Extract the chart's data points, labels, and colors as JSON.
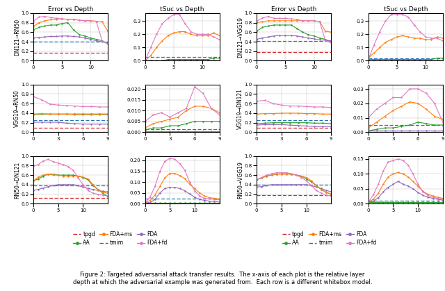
{
  "colors": {
    "tpgd": "#d62728",
    "tmim": "#1f77b4",
    "AA": "#2ca02c",
    "FDA": "#9467bd",
    "FDA+ms": "#ff7f0e",
    "FDA+fd": "#e377c2"
  },
  "plots": {
    "r0c0": {
      "ylim": [
        0.0,
        1.0
      ],
      "yticks": [
        0.0,
        0.2,
        0.4,
        0.6,
        0.8,
        1.0
      ],
      "xticks": [
        0,
        5,
        10
      ],
      "xlim": [
        0,
        13
      ],
      "ylabel": "DN121→RN50",
      "tpgd": [
        0.17,
        0.17,
        0.17,
        0.17,
        0.17,
        0.17,
        0.17,
        0.17,
        0.17,
        0.17,
        0.17,
        0.17,
        0.17,
        0.17
      ],
      "tmim": [
        0.4,
        0.4,
        0.4,
        0.4,
        0.4,
        0.4,
        0.4,
        0.4,
        0.4,
        0.4,
        0.4,
        0.4,
        0.4,
        0.4
      ],
      "AA": [
        0.65,
        0.7,
        0.73,
        0.75,
        0.75,
        0.78,
        0.8,
        0.65,
        0.55,
        0.52,
        0.48,
        0.45,
        0.42,
        0.35
      ],
      "FDA": [
        0.48,
        0.49,
        0.5,
        0.51,
        0.51,
        0.52,
        0.52,
        0.51,
        0.5,
        0.48,
        0.45,
        0.42,
        0.4,
        0.38
      ],
      "FDA+ms": [
        0.72,
        0.8,
        0.84,
        0.86,
        0.87,
        0.88,
        0.87,
        0.87,
        0.85,
        0.84,
        0.84,
        0.83,
        0.82,
        0.62
      ],
      "FDA+fd": [
        0.83,
        0.92,
        0.93,
        0.91,
        0.89,
        0.88,
        0.87,
        0.87,
        0.85,
        0.84,
        0.84,
        0.82,
        0.42,
        0.35
      ]
    },
    "r0c1": {
      "ylim": [
        0.0,
        0.36
      ],
      "yticks": [
        0.0,
        0.1,
        0.2,
        0.3
      ],
      "xticks": [
        0,
        5,
        10
      ],
      "xlim": [
        0,
        13
      ],
      "ylabel": "",
      "tpgd": [
        0.0,
        0.0,
        0.0,
        0.0,
        0.0,
        0.0,
        0.0,
        0.0,
        0.0,
        0.0,
        0.0,
        0.0,
        0.0,
        0.0
      ],
      "tmim": [
        0.03,
        0.03,
        0.03,
        0.03,
        0.03,
        0.03,
        0.03,
        0.03,
        0.03,
        0.03,
        0.03,
        0.03,
        0.03,
        0.03
      ],
      "AA": [
        0.0,
        0.0,
        0.0,
        0.0,
        0.01,
        0.01,
        0.01,
        0.01,
        0.01,
        0.01,
        0.01,
        0.01,
        0.02,
        0.02
      ],
      "FDA": [
        0.0,
        0.0,
        0.0,
        0.0,
        0.0,
        0.0,
        0.0,
        0.0,
        0.0,
        0.0,
        0.0,
        0.0,
        0.0,
        0.0
      ],
      "FDA+ms": [
        0.0,
        0.04,
        0.1,
        0.15,
        0.19,
        0.21,
        0.22,
        0.22,
        0.2,
        0.19,
        0.19,
        0.19,
        0.21,
        0.19
      ],
      "FDA+fd": [
        0.0,
        0.1,
        0.2,
        0.28,
        0.32,
        0.35,
        0.35,
        0.28,
        0.22,
        0.2,
        0.2,
        0.2,
        0.18,
        0.16
      ]
    },
    "r1c0": {
      "ylim": [
        0.0,
        1.0
      ],
      "yticks": [
        0.0,
        0.2,
        0.4,
        0.6,
        0.8,
        1.0
      ],
      "xticks": [
        0,
        3,
        6,
        9
      ],
      "xlim": [
        0,
        9
      ],
      "ylabel": "VGG19→RN50",
      "tpgd": [
        0.1,
        0.1,
        0.1,
        0.1,
        0.1,
        0.1,
        0.1,
        0.1,
        0.1,
        0.1
      ],
      "tmim": [
        0.26,
        0.26,
        0.26,
        0.26,
        0.26,
        0.26,
        0.26,
        0.26,
        0.26,
        0.26
      ],
      "AA": [
        0.37,
        0.38,
        0.38,
        0.38,
        0.38,
        0.38,
        0.38,
        0.38,
        0.38,
        0.38
      ],
      "FDA": [
        0.21,
        0.21,
        0.21,
        0.21,
        0.19,
        0.18,
        0.17,
        0.17,
        0.17,
        0.17
      ],
      "FDA+ms": [
        0.38,
        0.39,
        0.38,
        0.38,
        0.38,
        0.37,
        0.37,
        0.37,
        0.37,
        0.37
      ],
      "FDA+fd": [
        0.75,
        0.68,
        0.59,
        0.57,
        0.56,
        0.55,
        0.54,
        0.54,
        0.53,
        0.53
      ]
    },
    "r1c1": {
      "ylim": [
        0.0,
        0.022
      ],
      "yticks": [
        0.0,
        0.005,
        0.01,
        0.015,
        0.02
      ],
      "xticks": [
        0,
        3,
        6,
        9
      ],
      "xlim": [
        0,
        9
      ],
      "ylabel": "",
      "tpgd": [
        0.0,
        0.0,
        0.0,
        0.0,
        0.0,
        0.0,
        0.0,
        0.0,
        0.0,
        0.0
      ],
      "tmim": [
        0.0015,
        0.0015,
        0.0015,
        0.0015,
        0.0015,
        0.0015,
        0.0015,
        0.0015,
        0.0015,
        0.0015
      ],
      "AA": [
        0.001,
        0.002,
        0.002,
        0.003,
        0.003,
        0.004,
        0.005,
        0.005,
        0.005,
        0.005
      ],
      "FDA": [
        0.0005,
        0.0005,
        0.0005,
        0.0005,
        0.0005,
        0.0005,
        0.0005,
        0.0005,
        0.0005,
        0.0005
      ],
      "FDA+ms": [
        0.002,
        0.004,
        0.005,
        0.006,
        0.007,
        0.01,
        0.012,
        0.012,
        0.011,
        0.009
      ],
      "FDA+fd": [
        0.005,
        0.008,
        0.009,
        0.007,
        0.009,
        0.011,
        0.021,
        0.018,
        0.011,
        0.008
      ]
    },
    "r2c0": {
      "ylim": [
        0.0,
        1.0
      ],
      "yticks": [
        0.0,
        0.2,
        0.4,
        0.6,
        0.8,
        1.0
      ],
      "xticks": [
        0,
        5,
        10
      ],
      "xlim": [
        0,
        15
      ],
      "ylabel": "RN50→DN121",
      "tpgd": [
        0.12,
        0.12,
        0.12,
        0.12,
        0.12,
        0.12,
        0.12,
        0.12,
        0.12,
        0.12,
        0.12,
        0.12,
        0.12,
        0.12,
        0.12,
        0.12
      ],
      "tmim": [
        0.38,
        0.38,
        0.38,
        0.38,
        0.38,
        0.38,
        0.38,
        0.38,
        0.38,
        0.38,
        0.38,
        0.38,
        0.38,
        0.38,
        0.38,
        0.38
      ],
      "AA": [
        0.48,
        0.52,
        0.58,
        0.62,
        0.62,
        0.6,
        0.6,
        0.6,
        0.6,
        0.58,
        0.55,
        0.5,
        0.38,
        0.3,
        0.22,
        0.15
      ],
      "FDA": [
        0.28,
        0.3,
        0.33,
        0.36,
        0.38,
        0.4,
        0.4,
        0.4,
        0.4,
        0.38,
        0.35,
        0.32,
        0.3,
        0.28,
        0.26,
        0.25
      ],
      "FDA+ms": [
        0.48,
        0.56,
        0.6,
        0.62,
        0.6,
        0.6,
        0.58,
        0.58,
        0.58,
        0.58,
        0.56,
        0.52,
        0.4,
        0.3,
        0.24,
        0.22
      ],
      "FDA+fd": [
        0.79,
        0.82,
        0.9,
        0.93,
        0.88,
        0.85,
        0.82,
        0.78,
        0.7,
        0.55,
        0.4,
        0.28,
        0.22,
        0.2,
        0.18,
        0.16
      ]
    },
    "r2c1": {
      "ylim": [
        0.0,
        0.22
      ],
      "yticks": [
        0.0,
        0.05,
        0.1,
        0.15,
        0.2
      ],
      "xticks": [
        0,
        5,
        10
      ],
      "xlim": [
        0,
        15
      ],
      "ylabel": "",
      "tpgd": [
        0.0,
        0.0,
        0.0,
        0.0,
        0.0,
        0.0,
        0.0,
        0.0,
        0.0,
        0.0,
        0.0,
        0.0,
        0.0,
        0.0,
        0.0,
        0.0
      ],
      "tmim": [
        0.025,
        0.025,
        0.025,
        0.025,
        0.025,
        0.025,
        0.025,
        0.025,
        0.025,
        0.025,
        0.025,
        0.025,
        0.025,
        0.025,
        0.025,
        0.025
      ],
      "AA": [
        0.005,
        0.005,
        0.005,
        0.005,
        0.005,
        0.005,
        0.005,
        0.005,
        0.005,
        0.005,
        0.005,
        0.005,
        0.005,
        0.005,
        0.005,
        0.005
      ],
      "FDA": [
        0.005,
        0.005,
        0.02,
        0.05,
        0.07,
        0.075,
        0.075,
        0.07,
        0.06,
        0.045,
        0.03,
        0.02,
        0.015,
        0.012,
        0.01,
        0.008
      ],
      "FDA+ms": [
        0.005,
        0.015,
        0.04,
        0.08,
        0.12,
        0.14,
        0.14,
        0.13,
        0.115,
        0.09,
        0.07,
        0.05,
        0.035,
        0.028,
        0.025,
        0.022
      ],
      "FDA+fd": [
        0.005,
        0.03,
        0.08,
        0.15,
        0.195,
        0.21,
        0.205,
        0.185,
        0.155,
        0.1,
        0.06,
        0.035,
        0.025,
        0.022,
        0.02,
        0.018
      ]
    },
    "r3c0": {
      "ylim": [
        0.0,
        1.0
      ],
      "yticks": [
        0.0,
        0.2,
        0.4,
        0.6,
        0.8,
        1.0
      ],
      "xticks": [
        0,
        5,
        10
      ],
      "xlim": [
        0,
        13
      ],
      "ylabel": "DN121→VGG19",
      "tpgd": [
        0.18,
        0.18,
        0.18,
        0.18,
        0.18,
        0.18,
        0.18,
        0.18,
        0.18,
        0.18,
        0.18,
        0.18,
        0.18,
        0.18
      ],
      "tmim": [
        0.42,
        0.42,
        0.42,
        0.42,
        0.42,
        0.42,
        0.42,
        0.42,
        0.42,
        0.42,
        0.42,
        0.42,
        0.42,
        0.42
      ],
      "AA": [
        0.62,
        0.7,
        0.73,
        0.75,
        0.75,
        0.75,
        0.75,
        0.68,
        0.6,
        0.55,
        0.52,
        0.48,
        0.45,
        0.38
      ],
      "FDA": [
        0.45,
        0.48,
        0.5,
        0.52,
        0.53,
        0.53,
        0.53,
        0.52,
        0.5,
        0.48,
        0.46,
        0.44,
        0.43,
        0.42
      ],
      "FDA+ms": [
        0.8,
        0.82,
        0.84,
        0.84,
        0.84,
        0.84,
        0.84,
        0.84,
        0.84,
        0.84,
        0.84,
        0.82,
        0.62,
        0.6
      ],
      "FDA+fd": [
        0.83,
        0.9,
        0.93,
        0.89,
        0.89,
        0.89,
        0.88,
        0.87,
        0.84,
        0.84,
        0.84,
        0.82,
        0.42,
        0.38
      ]
    },
    "r3c1": {
      "ylim": [
        0.0,
        0.36
      ],
      "yticks": [
        0.0,
        0.1,
        0.2,
        0.3
      ],
      "xticks": [
        0,
        5,
        10
      ],
      "xlim": [
        0,
        13
      ],
      "ylabel": "",
      "tpgd": [
        0.0,
        0.0,
        0.0,
        0.0,
        0.0,
        0.0,
        0.0,
        0.0,
        0.0,
        0.0,
        0.0,
        0.0,
        0.0,
        0.0
      ],
      "tmim": [
        0.02,
        0.02,
        0.02,
        0.02,
        0.02,
        0.02,
        0.02,
        0.02,
        0.02,
        0.02,
        0.02,
        0.02,
        0.02,
        0.02
      ],
      "AA": [
        0.01,
        0.01,
        0.01,
        0.01,
        0.01,
        0.01,
        0.01,
        0.01,
        0.01,
        0.01,
        0.01,
        0.01,
        0.02,
        0.02
      ],
      "FDA": [
        0.0,
        0.0,
        0.0,
        0.0,
        0.0,
        0.0,
        0.0,
        0.0,
        0.0,
        0.0,
        0.0,
        0.0,
        0.0,
        0.0
      ],
      "FDA+ms": [
        0.02,
        0.06,
        0.1,
        0.14,
        0.16,
        0.18,
        0.19,
        0.18,
        0.17,
        0.17,
        0.16,
        0.16,
        0.18,
        0.17
      ],
      "FDA+fd": [
        0.01,
        0.12,
        0.22,
        0.3,
        0.35,
        0.35,
        0.35,
        0.33,
        0.27,
        0.22,
        0.18,
        0.17,
        0.17,
        0.15
      ]
    },
    "r4c0": {
      "ylim": [
        0.0,
        1.0
      ],
      "yticks": [
        0.0,
        0.2,
        0.4,
        0.6,
        0.8,
        1.0
      ],
      "xticks": [
        0,
        3,
        6,
        9
      ],
      "xlim": [
        0,
        9
      ],
      "ylabel": "VGG19→DN121",
      "tpgd": [
        0.1,
        0.1,
        0.1,
        0.1,
        0.1,
        0.1,
        0.1,
        0.1,
        0.1,
        0.1
      ],
      "tmim": [
        0.25,
        0.25,
        0.25,
        0.25,
        0.25,
        0.25,
        0.25,
        0.25,
        0.25,
        0.25
      ],
      "AA": [
        0.18,
        0.19,
        0.2,
        0.2,
        0.2,
        0.2,
        0.2,
        0.19,
        0.19,
        0.18
      ],
      "FDA": [
        0.15,
        0.16,
        0.16,
        0.16,
        0.15,
        0.14,
        0.13,
        0.12,
        0.12,
        0.12
      ],
      "FDA+ms": [
        0.38,
        0.39,
        0.39,
        0.4,
        0.4,
        0.4,
        0.39,
        0.39,
        0.38,
        0.38
      ],
      "FDA+fd": [
        0.65,
        0.67,
        0.6,
        0.57,
        0.55,
        0.55,
        0.54,
        0.53,
        0.53,
        0.52
      ]
    },
    "r4c1": {
      "ylim": [
        0.0,
        0.033
      ],
      "yticks": [
        0.0,
        0.01,
        0.02,
        0.03
      ],
      "xticks": [
        0,
        3,
        6,
        9
      ],
      "xlim": [
        0,
        9
      ],
      "ylabel": "",
      "tpgd": [
        0.0,
        0.0,
        0.0,
        0.0,
        0.0,
        0.0,
        0.0,
        0.0,
        0.0,
        0.0
      ],
      "tmim": [
        0.005,
        0.005,
        0.005,
        0.005,
        0.005,
        0.005,
        0.005,
        0.005,
        0.005,
        0.005
      ],
      "AA": [
        0.001,
        0.002,
        0.003,
        0.003,
        0.004,
        0.005,
        0.007,
        0.006,
        0.005,
        0.005
      ],
      "FDA": [
        0.001,
        0.001,
        0.001,
        0.001,
        0.001,
        0.001,
        0.001,
        0.001,
        0.001,
        0.001
      ],
      "FDA+ms": [
        0.003,
        0.007,
        0.011,
        0.015,
        0.018,
        0.021,
        0.02,
        0.016,
        0.011,
        0.009
      ],
      "FDA+fd": [
        0.01,
        0.016,
        0.02,
        0.024,
        0.024,
        0.03,
        0.03,
        0.027,
        0.02,
        0.007
      ]
    },
    "r5c0": {
      "ylim": [
        0.0,
        1.0
      ],
      "yticks": [
        0.0,
        0.2,
        0.4,
        0.6,
        0.8,
        1.0
      ],
      "xticks": [
        0,
        5,
        10
      ],
      "xlim": [
        0,
        15
      ],
      "ylabel": "RN50→VGG19",
      "tpgd": [
        0.18,
        0.18,
        0.18,
        0.18,
        0.18,
        0.18,
        0.18,
        0.18,
        0.18,
        0.18,
        0.18,
        0.18,
        0.18,
        0.18,
        0.18,
        0.18
      ],
      "tmim": [
        0.4,
        0.4,
        0.4,
        0.4,
        0.4,
        0.4,
        0.4,
        0.4,
        0.4,
        0.4,
        0.4,
        0.4,
        0.4,
        0.4,
        0.4,
        0.4
      ],
      "AA": [
        0.5,
        0.55,
        0.58,
        0.6,
        0.62,
        0.63,
        0.63,
        0.62,
        0.6,
        0.58,
        0.52,
        0.46,
        0.38,
        0.3,
        0.24,
        0.2
      ],
      "FDA": [
        0.35,
        0.36,
        0.38,
        0.4,
        0.4,
        0.4,
        0.4,
        0.4,
        0.4,
        0.4,
        0.4,
        0.38,
        0.35,
        0.32,
        0.28,
        0.25
      ],
      "FDA+ms": [
        0.5,
        0.54,
        0.58,
        0.6,
        0.62,
        0.62,
        0.62,
        0.62,
        0.6,
        0.58,
        0.55,
        0.48,
        0.38,
        0.3,
        0.24,
        0.2
      ],
      "FDA+fd": [
        0.5,
        0.55,
        0.6,
        0.63,
        0.65,
        0.65,
        0.65,
        0.63,
        0.6,
        0.55,
        0.48,
        0.38,
        0.28,
        0.22,
        0.18,
        0.16
      ]
    },
    "r5c1": {
      "ylim": [
        0.0,
        0.16
      ],
      "yticks": [
        0.0,
        0.05,
        0.1,
        0.15
      ],
      "xticks": [
        0,
        5,
        10
      ],
      "xlim": [
        0,
        15
      ],
      "ylabel": "",
      "tpgd": [
        0.0,
        0.0,
        0.0,
        0.0,
        0.0,
        0.0,
        0.0,
        0.0,
        0.0,
        0.0,
        0.0,
        0.0,
        0.0,
        0.0,
        0.0,
        0.0
      ],
      "tmim": [
        0.01,
        0.01,
        0.01,
        0.01,
        0.01,
        0.01,
        0.01,
        0.01,
        0.01,
        0.01,
        0.01,
        0.01,
        0.01,
        0.01,
        0.01,
        0.01
      ],
      "AA": [
        0.005,
        0.005,
        0.005,
        0.005,
        0.005,
        0.005,
        0.005,
        0.005,
        0.005,
        0.005,
        0.005,
        0.005,
        0.005,
        0.005,
        0.005,
        0.005
      ],
      "FDA": [
        0.005,
        0.008,
        0.02,
        0.04,
        0.055,
        0.065,
        0.075,
        0.065,
        0.06,
        0.05,
        0.038,
        0.028,
        0.022,
        0.018,
        0.015,
        0.012
      ],
      "FDA+ms": [
        0.005,
        0.015,
        0.035,
        0.065,
        0.09,
        0.1,
        0.105,
        0.1,
        0.09,
        0.075,
        0.058,
        0.042,
        0.032,
        0.026,
        0.022,
        0.018
      ],
      "FDA+fd": [
        0.005,
        0.03,
        0.065,
        0.11,
        0.14,
        0.145,
        0.15,
        0.145,
        0.13,
        0.1,
        0.065,
        0.04,
        0.028,
        0.022,
        0.018,
        0.015
      ]
    }
  },
  "col_titles_left": [
    "Error vs Depth",
    "tSuc vs Depth"
  ],
  "col_titles_right": [
    "Error vs Depth",
    "tSuc vs Depth"
  ],
  "legend_items": [
    {
      "label": "tpgd",
      "color": "#d62728",
      "linestyle": "--",
      "marker": false
    },
    {
      "label": "AA",
      "color": "#2ca02c",
      "linestyle": "-",
      "marker": true
    },
    {
      "label": "FDA+ms",
      "color": "#ff7f0e",
      "linestyle": "-",
      "marker": true
    },
    {
      "label": "tmim",
      "color": "#1f77b4",
      "linestyle": "--",
      "marker": false
    },
    {
      "label": "FDA",
      "color": "#9467bd",
      "linestyle": "-",
      "marker": true
    },
    {
      "label": "FDA+fd",
      "color": "#e377c2",
      "linestyle": "-",
      "marker": true
    }
  ]
}
